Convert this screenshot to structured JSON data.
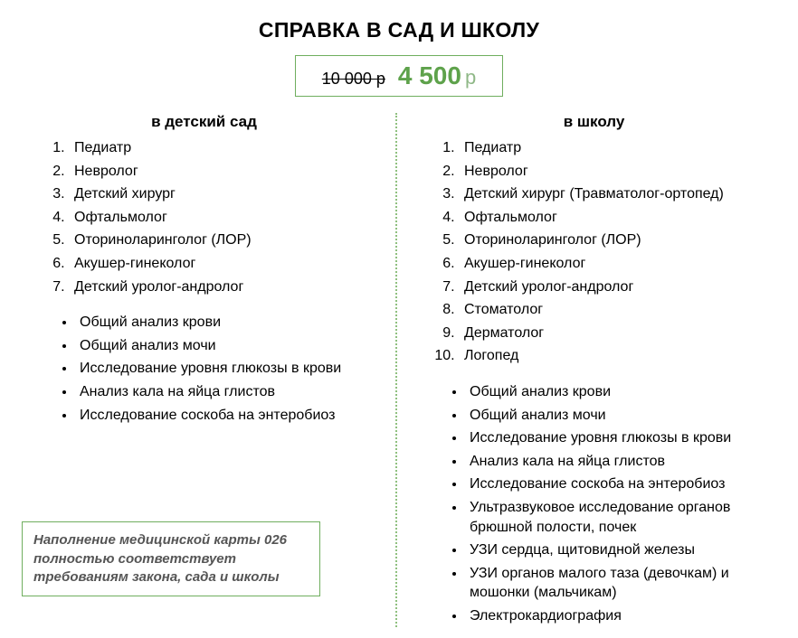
{
  "title": "СПРАВКА В САД И ШКОЛУ",
  "price": {
    "old": "10 000 р",
    "new": "4 500",
    "currency": "р"
  },
  "colors": {
    "accent_border": "#6fae5e",
    "accent_text": "#5ea24b",
    "accent_rub": "#8fb887",
    "divider": "#8fc07f",
    "footnote_text": "#555555",
    "background": "#ffffff",
    "text": "#000000"
  },
  "left": {
    "heading": "в детский сад",
    "numbered": [
      "Педиатр",
      "Невролог",
      "Детский хирург",
      "Офтальмолог",
      "Оториноларинголог (ЛОР)",
      "Акушер-гинеколог",
      "Детский уролог-андролог"
    ],
    "bullets": [
      "Общий анализ крови",
      "Общий анализ мочи",
      "Исследование уровня глюкозы в крови",
      "Анализ кала на яйца глистов",
      "Исследование соскоба на энтеробиоз"
    ]
  },
  "right": {
    "heading": "в школу",
    "numbered": [
      "Педиатр",
      "Невролог",
      "Детский хирург (Травматолог-ортопед)",
      "Офтальмолог",
      "Оториноларинголог (ЛОР)",
      "Акушер-гинеколог",
      "Детский уролог-андролог",
      "Стоматолог",
      "Дерматолог",
      "Логопед"
    ],
    "bullets": [
      "Общий анализ крови",
      "Общий анализ мочи",
      "Исследование уровня глюкозы в крови",
      "Анализ кала на яйца глистов",
      "Исследование соскоба на энтеробиоз",
      "Ультразвуковое исследование органов брюшной полости, почек",
      "УЗИ сердца, щитовидной железы",
      "УЗИ органов малого таза (девочкам) и мошонки (мальчикам)",
      "Электрокардиография"
    ]
  },
  "footnote": "Наполнение медицинской карты 026 полностью соответствует требованиям закона, сада и школы"
}
